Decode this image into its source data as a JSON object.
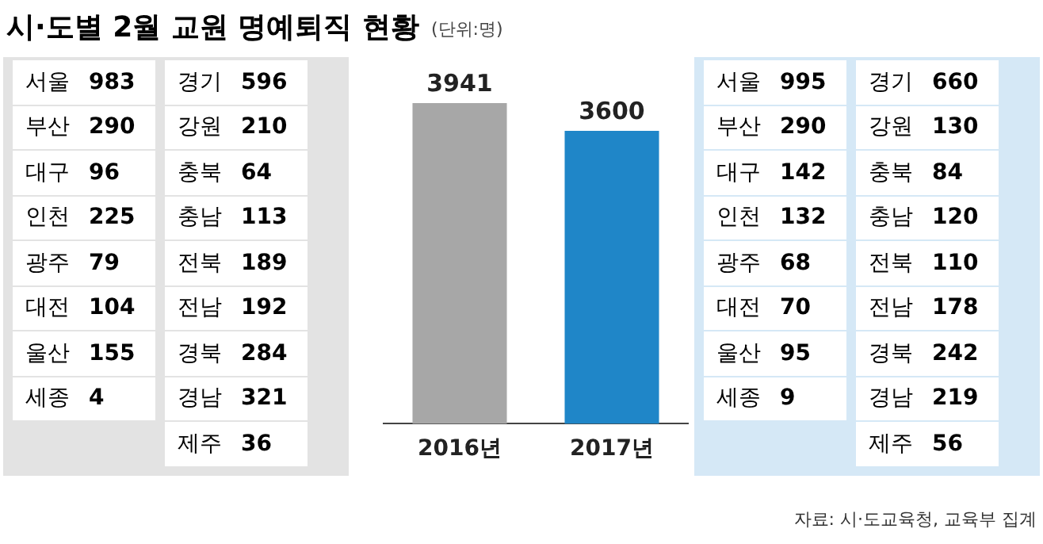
{
  "chart_data": [
    {
      "type": "other",
      "title": "시·도별 2월 교원 명예퇴직 현황",
      "categories": [
        "서울",
        "부산",
        "대구",
        "인천",
        "광주",
        "대전",
        "울산",
        "세종",
        "경기",
        "강원",
        "충북",
        "충남",
        "전북",
        "전남",
        "경북",
        "경남",
        "제주"
      ],
      "values": [
        983,
        290,
        96,
        225,
        79,
        104,
        155,
        4,
        596,
        210,
        64,
        113,
        189,
        192,
        284,
        321,
        36
      ],
      "data_labels": true
    },
    {
      "type": "bar",
      "categories": [
        "2016년",
        "2017년"
      ],
      "values": [
        3941,
        3600
      ],
      "colors": [
        "#a7a7a7",
        "#1f86c8"
      ],
      "data_labels": true,
      "tick_labels": "x",
      "grid": false,
      "legend": false,
      "annotations": [
        "(단위:명)",
        "자료: 시·도교육청, 교육부 집계"
      ]
    },
    {
      "type": "other",
      "categories": [
        "서울",
        "부산",
        "대구",
        "인천",
        "광주",
        "대전",
        "울산",
        "세종",
        "경기",
        "강원",
        "충북",
        "충남",
        "전북",
        "전남",
        "경북",
        "경남",
        "제주"
      ],
      "values": [
        995,
        290,
        142,
        132,
        68,
        70,
        95,
        9,
        660,
        130,
        84,
        120,
        110,
        178,
        242,
        219,
        56
      ],
      "data_labels": true
    }
  ]
}
